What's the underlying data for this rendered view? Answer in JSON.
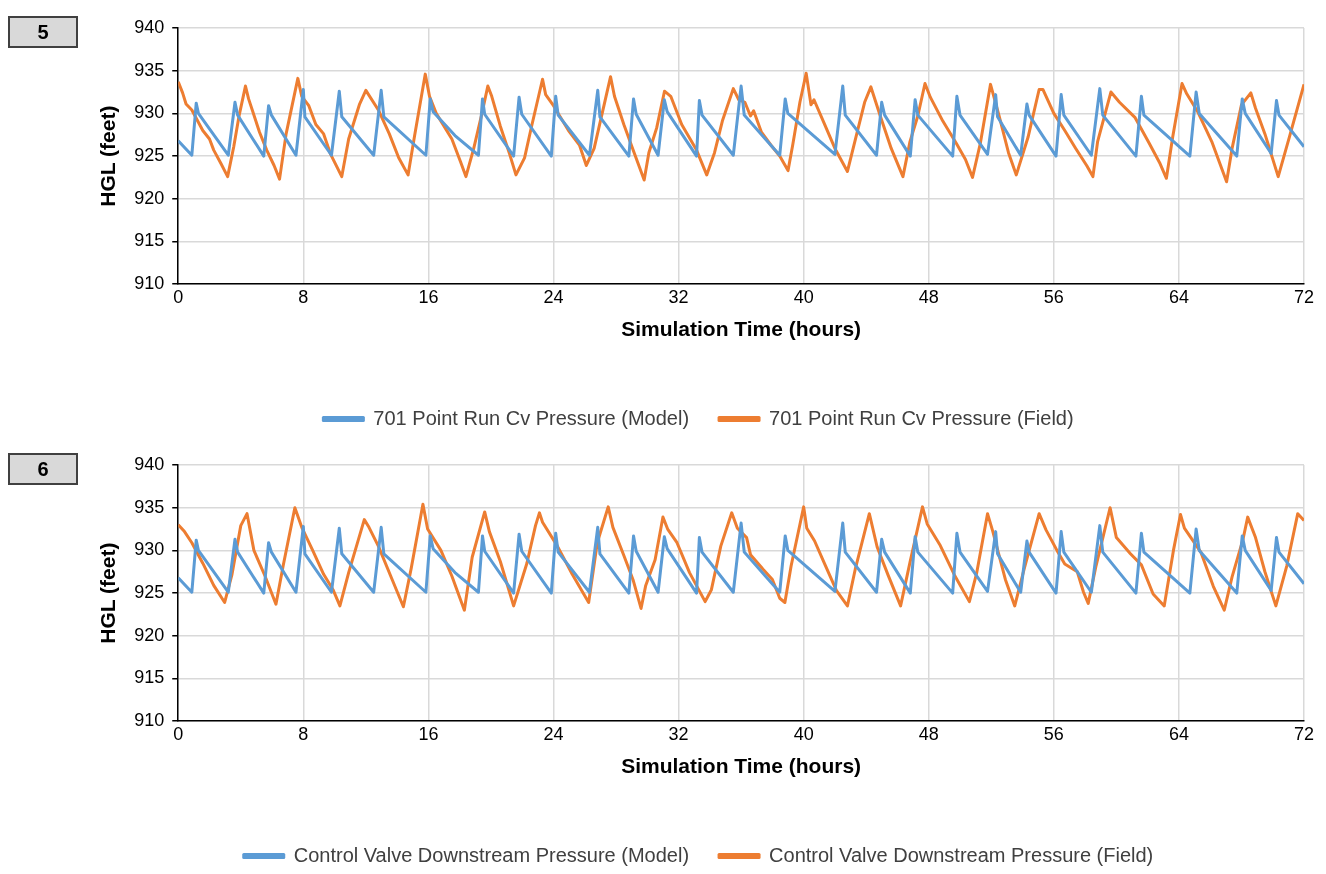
{
  "chart_data": [
    {
      "type": "line",
      "title": "5",
      "xlabel": "Simulation Time (hours)",
      "ylabel": "HGL (feet)",
      "xlim": [
        0,
        72
      ],
      "xticks": [
        0,
        8,
        16,
        24,
        32,
        40,
        48,
        56,
        64,
        72
      ],
      "ylim": [
        910,
        940
      ],
      "yticks": [
        910,
        915,
        920,
        925,
        930,
        935,
        940
      ],
      "grid": true,
      "legend": "bottom",
      "series": [
        {
          "name": "701 Point Run Cv Pressure (Model)",
          "color": "#5b9bd5",
          "x": [
            0,
            0.87,
            1.15,
            1.29,
            3.2,
            3.63,
            3.8,
            5.47,
            5.78,
            5.96,
            7.53,
            8.0,
            8.1,
            9.8,
            10.3,
            10.46,
            12.5,
            12.98,
            13.15,
            15.84,
            16.12,
            16.3,
            17.7,
            19.2,
            19.46,
            19.6,
            21.45,
            21.8,
            21.97,
            23.86,
            24.14,
            24.3,
            26.3,
            26.83,
            26.97,
            28.82,
            29.12,
            29.29,
            30.69,
            31.09,
            31.27,
            33.15,
            33.33,
            33.5,
            35.5,
            36.0,
            36.2,
            38.47,
            38.82,
            38.99,
            42.0,
            42.5,
            42.66,
            44.66,
            44.99,
            45.18,
            46.82,
            47.13,
            47.3,
            49.53,
            49.8,
            50.0,
            51.76,
            52.28,
            52.4,
            53.88,
            54.28,
            54.42,
            56.14,
            56.47,
            56.64,
            58.4,
            58.94,
            59.13,
            61.25,
            61.6,
            61.76,
            64.7,
            65.1,
            65.3,
            67.7,
            68.05,
            68.24,
            69.9,
            70.24,
            70.4,
            72
          ],
          "values": [
            926.8,
            925.1,
            931.2,
            930.0,
            925.1,
            931.3,
            929.8,
            925.0,
            930.9,
            929.8,
            925.1,
            932.8,
            929.6,
            925.1,
            932.6,
            929.6,
            925.1,
            932.7,
            929.6,
            925.1,
            931.7,
            930.2,
            927.4,
            925.1,
            931.7,
            929.9,
            925.0,
            931.9,
            929.9,
            925.0,
            932.0,
            929.8,
            925.1,
            932.7,
            929.6,
            925.0,
            931.7,
            929.9,
            925.1,
            931.6,
            930.2,
            925.0,
            931.5,
            929.8,
            925.1,
            933.2,
            929.8,
            925.1,
            931.7,
            930.0,
            925.2,
            933.2,
            929.8,
            925.1,
            931.3,
            929.8,
            925.0,
            931.6,
            929.8,
            925.0,
            932.0,
            929.8,
            925.2,
            932.2,
            929.6,
            925.1,
            931.1,
            929.8,
            925.0,
            932.2,
            929.8,
            925.1,
            932.9,
            929.8,
            925.0,
            932.0,
            929.8,
            925.0,
            932.5,
            930.0,
            925.0,
            931.7,
            930.0,
            925.3,
            931.5,
            929.8,
            926.1
          ]
        },
        {
          "name": "701 Point Run Cv Pressure (Field)",
          "color": "#ed7d31",
          "x": [
            0,
            0.28,
            0.5,
            0.87,
            1.57,
            2.0,
            2.27,
            2.74,
            3.16,
            3.55,
            3.9,
            4.3,
            4.5,
            5.2,
            5.66,
            6.13,
            6.48,
            6.9,
            7.65,
            7.9,
            8.35,
            8.8,
            9.3,
            9.75,
            10.46,
            10.9,
            11.6,
            12.0,
            12.8,
            13.5,
            14.1,
            14.7,
            15.1,
            15.8,
            16.07,
            16.5,
            17.5,
            18.06,
            18.4,
            18.9,
            19.4,
            19.8,
            20.05,
            20.6,
            21.2,
            21.6,
            22.15,
            22.6,
            23.3,
            23.5,
            24.0,
            24.96,
            25.66,
            26.1,
            26.6,
            27.3,
            27.65,
            27.9,
            28.5,
            29.2,
            29.8,
            30.1,
            30.6,
            31.1,
            31.5,
            32.2,
            33.15,
            33.8,
            34.3,
            34.8,
            35.5,
            35.85,
            36.24,
            36.6,
            36.8,
            37.3,
            37.9,
            38.47,
            39.0,
            39.3,
            39.76,
            40.16,
            40.47,
            40.66,
            41.3,
            42.0,
            42.8,
            43.3,
            43.9,
            44.3,
            44.9,
            45.6,
            46.35,
            46.8,
            47.3,
            47.76,
            48.1,
            48.9,
            49.76,
            50.35,
            50.8,
            51.3,
            51.95,
            52.5,
            53.1,
            53.6,
            54.35,
            55.06,
            55.3,
            56.0,
            56.7,
            57.4,
            58.1,
            58.5,
            58.8,
            59.65,
            60.2,
            61.2,
            62.1,
            62.8,
            63.2,
            63.6,
            64.2,
            64.5,
            65.2,
            66.1,
            67.05,
            67.4,
            68.0,
            68.6,
            68.9,
            69.5,
            70.35,
            71.06,
            72
          ],
          "values": [
            933.7,
            932.4,
            931.1,
            930.4,
            928.0,
            927.0,
            925.7,
            924.1,
            922.6,
            926.1,
            929.8,
            933.2,
            931.7,
            927.8,
            925.7,
            923.9,
            922.3,
            927.6,
            934.1,
            932.0,
            930.9,
            928.7,
            927.6,
            925.2,
            922.6,
            927.0,
            931.1,
            932.7,
            930.4,
            927.6,
            924.8,
            922.8,
            927.2,
            934.6,
            932.0,
            930.0,
            927.0,
            924.3,
            922.6,
            925.9,
            929.8,
            933.2,
            932.0,
            928.5,
            925.2,
            922.8,
            924.8,
            928.5,
            934.0,
            932.2,
            930.9,
            928.0,
            926.3,
            923.9,
            925.9,
            931.5,
            934.3,
            932.0,
            928.7,
            925.2,
            922.2,
            925.4,
            928.3,
            932.6,
            932.0,
            928.7,
            925.7,
            922.8,
            925.4,
            929.1,
            932.9,
            931.6,
            931.3,
            929.7,
            930.3,
            927.8,
            926.3,
            925.0,
            923.3,
            926.3,
            931.3,
            934.7,
            931.0,
            931.6,
            928.9,
            925.9,
            923.2,
            926.9,
            931.3,
            933.1,
            929.7,
            925.9,
            922.6,
            926.7,
            929.7,
            933.5,
            931.9,
            929.1,
            926.5,
            924.6,
            922.5,
            926.5,
            933.4,
            929.7,
            925.4,
            922.8,
            927.2,
            932.8,
            932.8,
            930.0,
            928.0,
            925.9,
            923.9,
            922.6,
            926.7,
            932.5,
            931.3,
            929.5,
            926.5,
            924.1,
            922.4,
            927.2,
            933.5,
            932.3,
            930.2,
            926.7,
            922.0,
            925.9,
            931.0,
            932.4,
            930.6,
            927.6,
            922.6,
            927.2,
            933.4
          ]
        }
      ]
    },
    {
      "type": "line",
      "title": "6",
      "xlabel": "Simulation Time (hours)",
      "ylabel": "HGL (feet)",
      "xlim": [
        0,
        72
      ],
      "xticks": [
        0,
        8,
        16,
        24,
        32,
        40,
        48,
        56,
        64,
        72
      ],
      "ylim": [
        910,
        940
      ],
      "yticks": [
        910,
        915,
        920,
        925,
        930,
        935,
        940
      ],
      "grid": true,
      "legend": "bottom",
      "series": [
        {
          "name": "Control Valve Downstream Pressure (Model)",
          "color": "#5b9bd5",
          "x": [
            0,
            0.87,
            1.15,
            1.29,
            3.2,
            3.63,
            3.8,
            5.47,
            5.78,
            5.96,
            7.53,
            8.0,
            8.1,
            9.8,
            10.3,
            10.46,
            12.5,
            12.98,
            13.15,
            15.84,
            16.12,
            16.3,
            17.7,
            19.2,
            19.46,
            19.6,
            21.45,
            21.8,
            21.97,
            23.86,
            24.14,
            24.3,
            26.3,
            26.83,
            26.97,
            28.82,
            29.12,
            29.29,
            30.69,
            31.09,
            31.27,
            33.15,
            33.33,
            33.5,
            35.5,
            36.0,
            36.2,
            38.47,
            38.82,
            38.99,
            42.0,
            42.5,
            42.66,
            44.66,
            44.99,
            45.18,
            46.82,
            47.13,
            47.3,
            49.53,
            49.8,
            50.0,
            51.76,
            52.28,
            52.4,
            53.88,
            54.28,
            54.42,
            56.14,
            56.47,
            56.64,
            58.4,
            58.94,
            59.13,
            61.25,
            61.6,
            61.76,
            64.7,
            65.1,
            65.3,
            67.7,
            68.05,
            68.24,
            69.9,
            70.24,
            70.4,
            72
          ],
          "values": [
            926.8,
            925.1,
            931.2,
            930.0,
            925.1,
            931.3,
            929.8,
            925.0,
            930.9,
            929.8,
            925.1,
            932.8,
            929.6,
            925.1,
            932.6,
            929.6,
            925.1,
            932.7,
            929.6,
            925.1,
            931.7,
            930.2,
            927.4,
            925.1,
            931.7,
            929.9,
            925.0,
            931.9,
            929.9,
            925.0,
            932.0,
            929.8,
            925.1,
            932.7,
            929.6,
            925.0,
            931.7,
            929.9,
            925.1,
            931.6,
            930.2,
            925.0,
            931.5,
            929.8,
            925.1,
            933.2,
            929.8,
            925.1,
            931.7,
            930.0,
            925.2,
            933.2,
            929.8,
            925.1,
            931.3,
            929.8,
            925.0,
            931.6,
            929.8,
            925.0,
            932.0,
            929.8,
            925.2,
            932.2,
            929.6,
            925.1,
            931.1,
            929.8,
            925.0,
            932.2,
            929.8,
            925.1,
            932.9,
            929.8,
            925.0,
            932.0,
            929.8,
            925.0,
            932.5,
            930.0,
            925.0,
            931.7,
            930.0,
            925.3,
            931.5,
            929.8,
            926.1
          ]
        },
        {
          "name": "Control Valve Downstream Pressure (Field)",
          "color": "#ed7d31",
          "x": [
            0,
            0.4,
            0.87,
            1.57,
            2.27,
            2.97,
            3.44,
            4.0,
            4.4,
            4.84,
            5.55,
            6.25,
            6.72,
            7.46,
            7.9,
            8.6,
            9.3,
            9.9,
            10.34,
            10.9,
            11.9,
            12.2,
            12.8,
            13.7,
            14.4,
            14.9,
            15.65,
            15.95,
            16.8,
            17.5,
            18.3,
            18.8,
            19.6,
            19.9,
            20.6,
            21.45,
            22.3,
            22.85,
            23.1,
            23.3,
            24.25,
            25.2,
            26.25,
            26.8,
            27.5,
            27.8,
            28.5,
            29.1,
            29.6,
            29.9,
            30.5,
            31.0,
            31.3,
            31.9,
            32.7,
            33.7,
            34.1,
            34.7,
            35.4,
            35.76,
            36.35,
            36.6,
            37.4,
            38.0,
            38.47,
            38.8,
            39.2,
            40.0,
            40.2,
            40.7,
            41.3,
            42.1,
            42.8,
            43.3,
            44.2,
            44.7,
            45.4,
            46.2,
            46.8,
            47.6,
            47.9,
            48.7,
            49.65,
            50.6,
            51.06,
            51.76,
            52.1,
            52.9,
            53.5,
            54.1,
            55.06,
            55.5,
            56.2,
            56.7,
            57.5,
            57.9,
            58.2,
            58.7,
            59.6,
            60.0,
            60.9,
            61.6,
            62.35,
            63.06,
            63.65,
            64.1,
            64.35,
            65.4,
            66.2,
            66.9,
            67.4,
            68.1,
            68.4,
            68.9,
            69.5,
            70.2,
            70.9,
            71.6,
            72
          ],
          "values": [
            933.0,
            932.2,
            930.9,
            928.5,
            925.9,
            923.9,
            927.2,
            932.9,
            934.3,
            930.0,
            927.0,
            923.7,
            928.3,
            935.0,
            932.7,
            930.0,
            927.2,
            925.4,
            923.5,
            927.4,
            933.6,
            932.7,
            930.5,
            926.5,
            923.4,
            927.9,
            935.4,
            932.5,
            930.0,
            927.0,
            923.0,
            929.2,
            934.5,
            932.2,
            928.7,
            923.5,
            928.5,
            932.9,
            934.4,
            933.3,
            930.5,
            927.2,
            923.9,
            930.9,
            935.1,
            932.7,
            929.4,
            926.5,
            923.2,
            925.9,
            928.9,
            933.9,
            932.5,
            930.9,
            927.4,
            924.0,
            925.4,
            930.5,
            934.4,
            932.6,
            931.5,
            929.5,
            927.8,
            926.6,
            924.4,
            923.9,
            928.2,
            935.1,
            932.6,
            931.1,
            928.6,
            925.3,
            923.5,
            927.8,
            934.3,
            930.4,
            927.1,
            923.5,
            928.6,
            935.1,
            933.1,
            930.7,
            927.1,
            924.0,
            927.3,
            934.3,
            932.2,
            926.6,
            923.5,
            927.8,
            934.3,
            932.4,
            930.0,
            928.4,
            927.5,
            925.1,
            923.8,
            928.2,
            935.0,
            931.5,
            929.6,
            928.3,
            924.9,
            923.5,
            930.0,
            934.2,
            932.6,
            929.8,
            925.8,
            923.0,
            926.9,
            931.3,
            933.9,
            931.5,
            927.5,
            923.5,
            928.2,
            934.3,
            933.5
          ]
        }
      ]
    }
  ]
}
